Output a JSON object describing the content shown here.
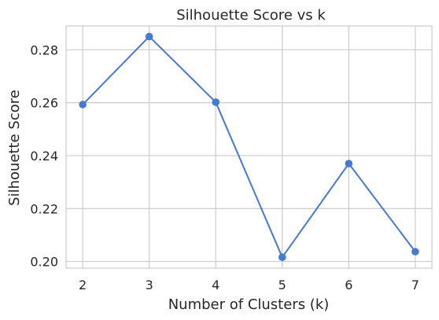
{
  "chart_data": {
    "type": "line",
    "title": "Silhouette Score vs k",
    "xlabel": "Number of Clusters (k)",
    "ylabel": "Silhouette Score",
    "x": [
      2,
      3,
      4,
      5,
      6,
      7
    ],
    "series": [
      {
        "values": [
          0.2593,
          0.285,
          0.2602,
          0.2016,
          0.237,
          0.2037
        ],
        "color": "#4878d0",
        "marker": "circle"
      }
    ],
    "xticks": [
      2,
      3,
      4,
      5,
      6,
      7
    ],
    "xtick_labels": [
      "2",
      "3",
      "4",
      "5",
      "6",
      "7"
    ],
    "yticks": [
      0.2,
      0.22,
      0.24,
      0.26,
      0.28
    ],
    "ytick_labels": [
      "0.20",
      "0.22",
      "0.24",
      "0.26",
      "0.28"
    ],
    "xlim": [
      1.75,
      7.25
    ],
    "ylim": [
      0.1975,
      0.289
    ],
    "grid": true,
    "legend": "none"
  }
}
